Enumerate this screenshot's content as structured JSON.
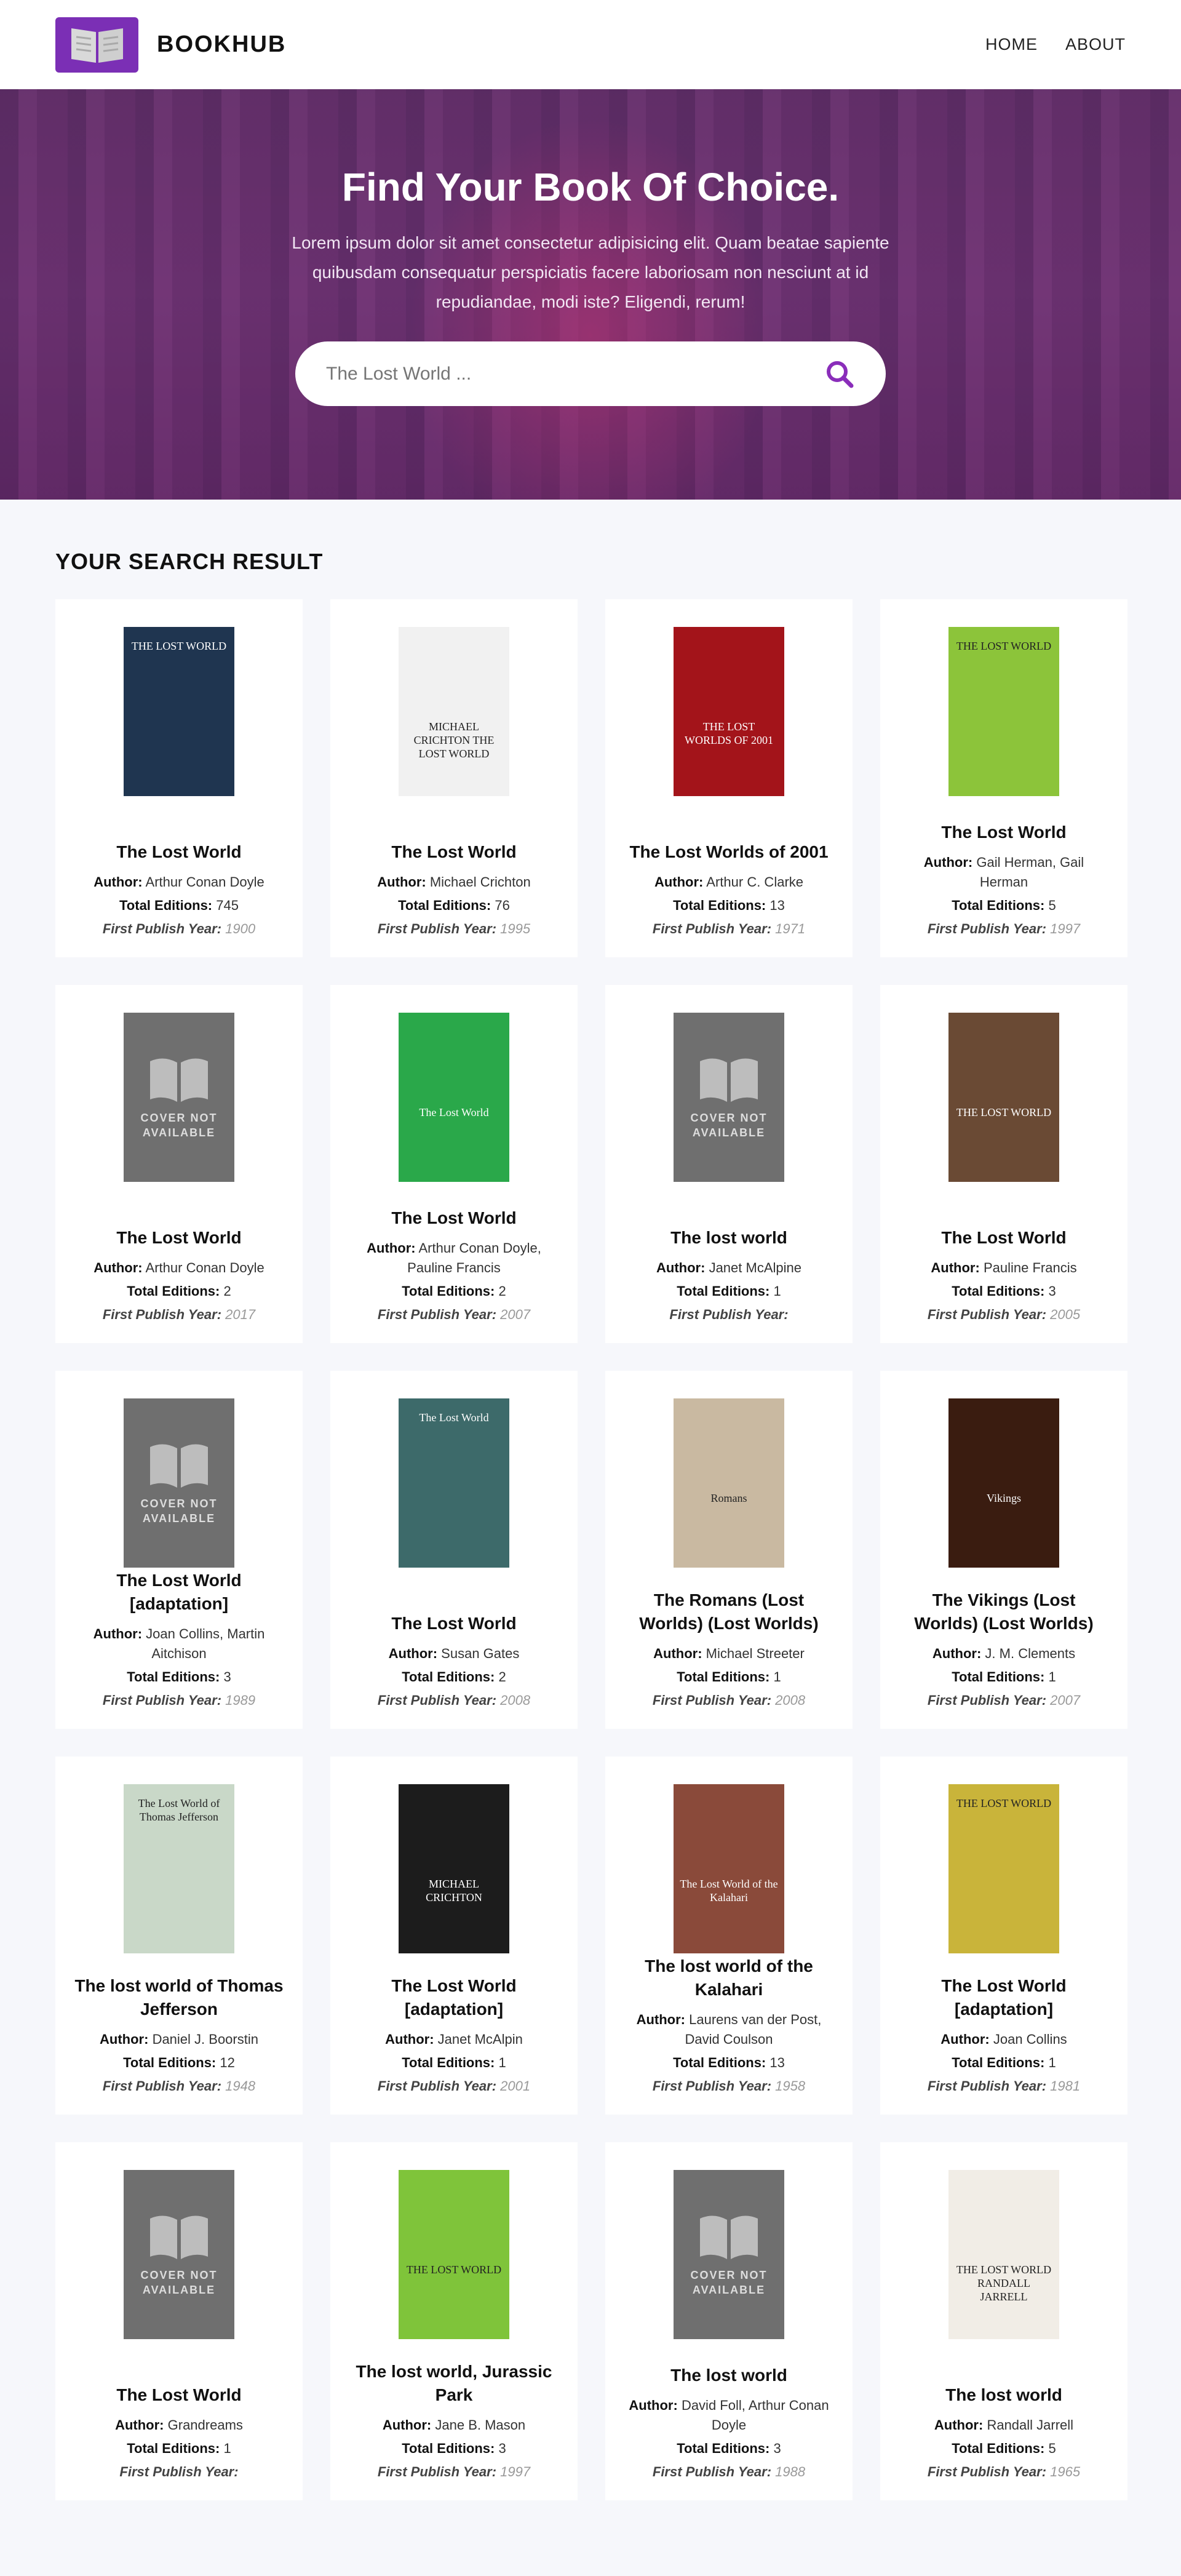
{
  "brand": {
    "name": "BOOKHUB"
  },
  "nav": {
    "home": "HOME",
    "about": "ABOUT"
  },
  "hero": {
    "title": "Find Your Book Of Choice.",
    "subtitle": "Lorem ipsum dolor sit amet consectetur adipisicing elit. Quam beatae sapiente quibusdam consequatur perspiciatis facere laboriosam non nesciunt at id repudiandae, modi iste? Eligendi, rerum!",
    "search_value": "",
    "search_placeholder": "The Lost World ..."
  },
  "results": {
    "heading": "YOUR SEARCH RESULT",
    "labels": {
      "author": "Author:",
      "editions": "Total Editions:",
      "year": "First Publish Year:"
    },
    "cover_na": "COVER NOT AVAILABLE",
    "books": [
      {
        "title": "The Lost World",
        "author": "Arthur Conan Doyle",
        "editions": "745",
        "year": "1900",
        "cover": "#1f3550",
        "cover_text": "THE LOST WORLD"
      },
      {
        "title": "The Lost World",
        "author": "Michael Crichton",
        "editions": "76",
        "year": "1995",
        "cover": "#f1f1f1",
        "cover_text": "MICHAEL CRICHTON THE LOST WORLD"
      },
      {
        "title": "The Lost Worlds of 2001",
        "author": "Arthur C. Clarke",
        "editions": "13",
        "year": "1971",
        "cover": "#a3141a",
        "cover_text": "THE LOST WORLDS OF 2001"
      },
      {
        "title": "The Lost World",
        "author": "Gail Herman, Gail Herman",
        "editions": "5",
        "year": "1997",
        "cover": "#8cc43a",
        "cover_text": "THE LOST WORLD"
      },
      {
        "title": "The Lost World",
        "author": "Arthur Conan Doyle",
        "editions": "2",
        "year": "2017",
        "cover": "",
        "cover_text": ""
      },
      {
        "title": "The Lost World",
        "author": "Arthur Conan Doyle, Pauline Francis",
        "editions": "2",
        "year": "2007",
        "cover": "#2aa84a",
        "cover_text": "The Lost World"
      },
      {
        "title": "The lost world",
        "author": "Janet McAlpine",
        "editions": "1",
        "year": "",
        "cover": "",
        "cover_text": ""
      },
      {
        "title": "The Lost World",
        "author": "Pauline Francis",
        "editions": "3",
        "year": "2005",
        "cover": "#6a4a34",
        "cover_text": "THE LOST WORLD"
      },
      {
        "title": "The Lost World [adaptation]",
        "author": "Joan Collins, Martin Aitchison",
        "editions": "3",
        "year": "1989",
        "cover": "",
        "cover_text": ""
      },
      {
        "title": "The Lost World",
        "author": "Susan Gates",
        "editions": "2",
        "year": "2008",
        "cover": "#3d6a6a",
        "cover_text": "The Lost World"
      },
      {
        "title": "The Romans (Lost Worlds) (Lost Worlds)",
        "author": "Michael Streeter",
        "editions": "1",
        "year": "2008",
        "cover": "#c9b9a1",
        "cover_text": "Romans"
      },
      {
        "title": "The Vikings (Lost Worlds) (Lost Worlds)",
        "author": "J. M. Clements",
        "editions": "1",
        "year": "2007",
        "cover": "#3a1c10",
        "cover_text": "Vikings"
      },
      {
        "title": "The lost world of Thomas Jefferson",
        "author": "Daniel J. Boorstin",
        "editions": "12",
        "year": "1948",
        "cover": "#c9d8c8",
        "cover_text": "The Lost World of Thomas Jefferson"
      },
      {
        "title": "The Lost World [adaptation]",
        "author": "Janet McAlpin",
        "editions": "1",
        "year": "2001",
        "cover": "#1c1c1c",
        "cover_text": "MICHAEL CRICHTON"
      },
      {
        "title": "The lost world of the Kalahari",
        "author": "Laurens van der Post, David Coulson",
        "editions": "13",
        "year": "1958",
        "cover": "#8a4a3a",
        "cover_text": "The Lost World of the Kalahari"
      },
      {
        "title": "The Lost World [adaptation]",
        "author": "Joan Collins",
        "editions": "1",
        "year": "1981",
        "cover": "#c9b43a",
        "cover_text": "THE LOST WORLD"
      },
      {
        "title": "The Lost World",
        "author": "Grandreams",
        "editions": "1",
        "year": "",
        "cover": "",
        "cover_text": ""
      },
      {
        "title": "The lost world, Jurassic Park",
        "author": "Jane B. Mason",
        "editions": "3",
        "year": "1997",
        "cover": "#7fc43a",
        "cover_text": "THE LOST WORLD"
      },
      {
        "title": "The lost world",
        "author": "David Foll, Arthur Conan Doyle",
        "editions": "3",
        "year": "1988",
        "cover": "",
        "cover_text": ""
      },
      {
        "title": "The lost world",
        "author": "Randall Jarrell",
        "editions": "5",
        "year": "1965",
        "cover": "#f1ede6",
        "cover_text": "THE LOST WORLD RANDALL JARRELL"
      }
    ]
  },
  "colors": {
    "accent": "#7b2fb5",
    "search_icon": "#8a2dba"
  }
}
